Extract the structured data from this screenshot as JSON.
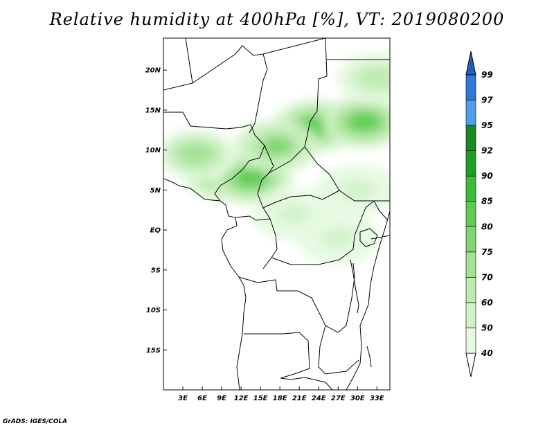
{
  "title": "Relative humidity at 400hPa [%], VT: 2019080200",
  "credit": "GrADS: IGES/COLA",
  "lat_ticks": [
    "20N",
    "15N",
    "10N",
    "5N",
    "EQ",
    "5S",
    "10S",
    "15S"
  ],
  "lon_ticks": [
    "3E",
    "6E",
    "9E",
    "12E",
    "15E",
    "18E",
    "21E",
    "24E",
    "27E",
    "30E",
    "33E"
  ],
  "colorbar": {
    "labels": [
      "40",
      "50",
      "60",
      "70",
      "75",
      "80",
      "85",
      "90",
      "92",
      "95",
      "97",
      "99"
    ],
    "colors": [
      "#ffffff",
      "#e6f9e1",
      "#d1f2c8",
      "#bceab1",
      "#a3e193",
      "#82d672",
      "#5fcb53",
      "#3dbc3a",
      "#1f9e25",
      "#1b8a1f",
      "#4f9ee8",
      "#2f79d6",
      "#1b5fc2"
    ]
  },
  "chart_data": {
    "type": "heatmap",
    "title": "Relative humidity at 400hPa [%], VT: 2019080200",
    "variable": "Relative humidity",
    "units": "%",
    "level": "400hPa",
    "valid_time": "2019080200",
    "lon_range": [
      0,
      35
    ],
    "lat_range": [
      -20,
      24
    ],
    "contour_levels": [
      40,
      50,
      60,
      70,
      75,
      80,
      85,
      90,
      92,
      95,
      97,
      99
    ],
    "regions": [
      {
        "lon": 23.5,
        "lat": 13.0,
        "value": 80
      },
      {
        "lon": 31.0,
        "lat": 13.5,
        "value": 82
      },
      {
        "lon": 9.5,
        "lat": 7.0,
        "value": 82
      },
      {
        "lon": 13.5,
        "lat": 6.5,
        "value": 80
      },
      {
        "lon": 17.5,
        "lat": 10.5,
        "value": 75
      },
      {
        "lon": 5.0,
        "lat": 9.5,
        "value": 72
      },
      {
        "lon": 33.0,
        "lat": 19.0,
        "value": 65
      },
      {
        "lon": 20.0,
        "lat": 2.0,
        "value": 55
      },
      {
        "lon": 27.0,
        "lat": -1.0,
        "value": 55
      },
      {
        "lon": 30.0,
        "lat": 5.0,
        "value": 50
      }
    ]
  }
}
